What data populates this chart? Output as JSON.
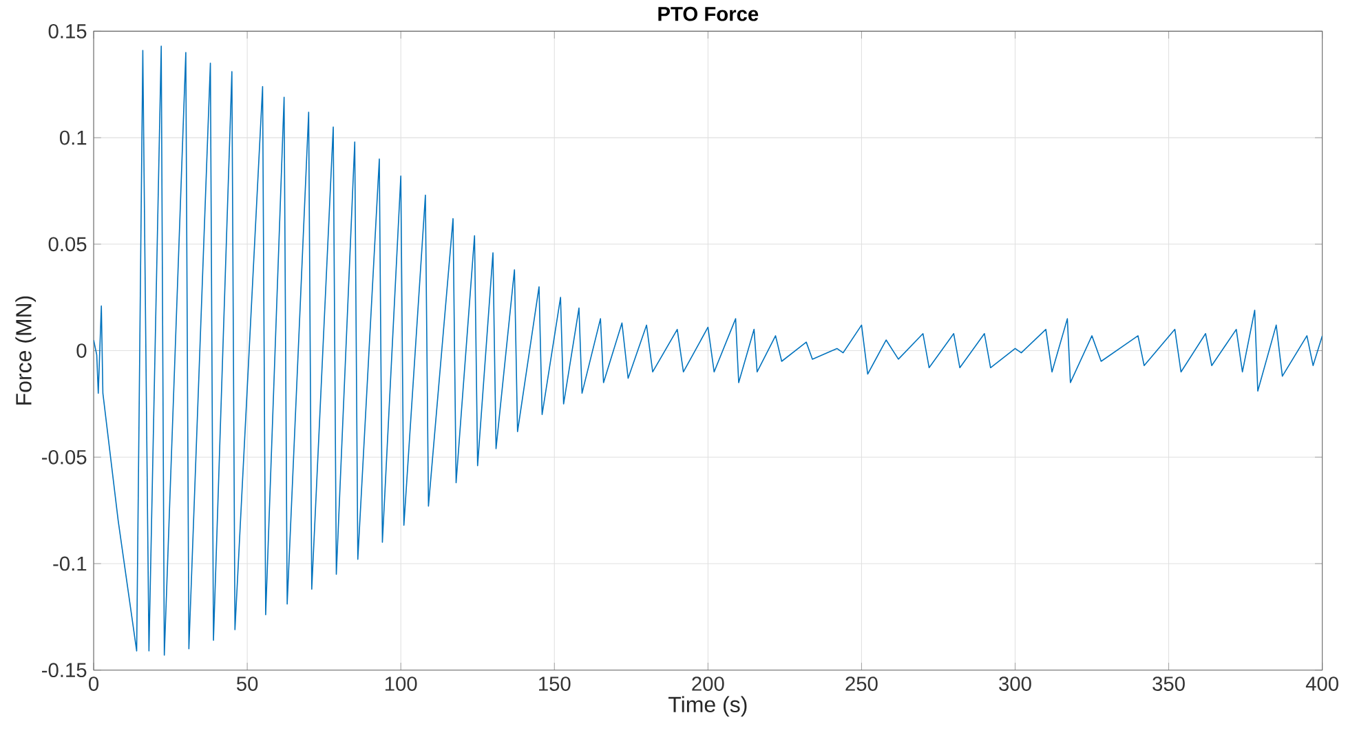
{
  "chart_data": {
    "type": "line",
    "title": "PTO Force",
    "xlabel": "Time (s)",
    "ylabel": "Force (MN)",
    "xlim": [
      0,
      400
    ],
    "xticks": [
      0,
      50,
      100,
      150,
      200,
      250,
      300,
      350,
      400
    ],
    "ylim": [
      -0.15,
      0.15
    ],
    "yticks": [
      -0.15,
      -0.1,
      -0.05,
      0,
      0.05,
      0.1,
      0.15
    ],
    "grid": true,
    "series": [
      {
        "color": "#0072bd",
        "x": [
          0,
          1,
          1.5,
          2.5,
          3,
          8,
          14,
          16,
          18,
          22,
          23,
          30,
          31,
          38,
          39,
          45,
          46,
          55,
          56,
          62,
          63,
          70,
          71,
          78,
          79,
          85,
          86,
          93,
          94,
          100,
          101,
          108,
          109,
          117,
          118,
          124,
          125,
          130,
          131,
          137,
          138,
          145,
          146,
          152,
          153,
          158,
          159,
          165,
          166,
          172,
          174,
          180,
          182,
          190,
          192,
          200,
          202,
          209,
          210,
          215,
          216,
          222,
          224,
          232,
          234,
          242,
          244,
          250,
          252,
          258,
          262,
          270,
          272,
          280,
          282,
          290,
          292,
          300,
          302,
          310,
          312,
          317,
          318,
          325,
          328,
          340,
          342,
          352,
          354,
          362,
          364,
          372,
          374,
          378,
          379,
          385,
          387,
          395,
          397,
          400
        ],
        "values": [
          0.005,
          -0.002,
          -0.02,
          0.021,
          -0.02,
          -0.08,
          -0.141,
          0.141,
          -0.141,
          0.143,
          -0.143,
          0.14,
          -0.14,
          0.135,
          -0.136,
          0.131,
          -0.131,
          0.124,
          -0.124,
          0.119,
          -0.119,
          0.112,
          -0.112,
          0.105,
          -0.105,
          0.098,
          -0.098,
          0.09,
          -0.09,
          0.082,
          -0.082,
          0.073,
          -0.073,
          0.062,
          -0.062,
          0.054,
          -0.054,
          0.046,
          -0.046,
          0.038,
          -0.038,
          0.03,
          -0.03,
          0.025,
          -0.025,
          0.02,
          -0.02,
          0.015,
          -0.015,
          0.013,
          -0.013,
          0.012,
          -0.01,
          0.01,
          -0.01,
          0.011,
          -0.01,
          0.015,
          -0.015,
          0.01,
          -0.01,
          0.007,
          -0.005,
          0.004,
          -0.004,
          0.001,
          -0.001,
          0.012,
          -0.011,
          0.005,
          -0.004,
          0.008,
          -0.008,
          0.008,
          -0.008,
          0.008,
          -0.008,
          0.001,
          -0.001,
          0.01,
          -0.01,
          0.015,
          -0.015,
          0.007,
          -0.005,
          0.007,
          -0.007,
          0.01,
          -0.01,
          0.008,
          -0.007,
          0.01,
          -0.01,
          0.019,
          -0.019,
          0.012,
          -0.012,
          0.007,
          -0.007,
          0.007
        ]
      }
    ]
  }
}
